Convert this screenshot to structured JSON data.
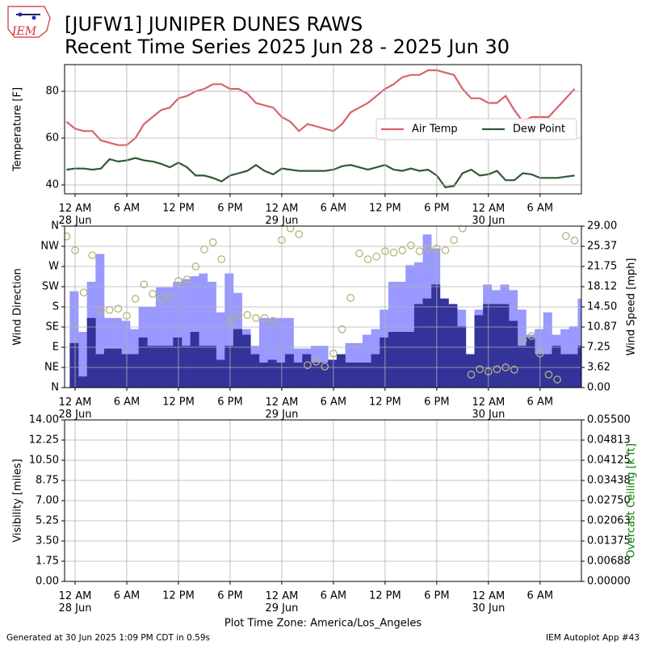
{
  "header": {
    "title": "[JUFW1] JUNIPER DUNES RAWS",
    "subtitle": "Recent Time Series 2025 Jun 28 - 2025 Jun 30",
    "logo_text": "IEM"
  },
  "footer": {
    "left": "Generated at 30 Jun 2025 1:09 PM CDT in 0.59s",
    "right": "IEM Autoplot App #43"
  },
  "chart_data": [
    {
      "type": "line",
      "ylabel": "Temperature [F]",
      "legend": "center right",
      "grid": true,
      "x": [
        -1,
        0,
        1,
        2,
        3,
        4,
        5,
        6,
        7,
        8,
        9,
        10,
        11,
        12,
        13,
        14,
        15,
        16,
        17,
        18,
        19,
        20,
        21,
        22,
        23,
        24,
        25,
        26,
        27,
        28,
        29,
        30,
        31,
        32,
        33,
        34,
        35,
        36,
        37,
        38,
        39,
        40,
        41,
        42,
        43,
        44,
        45,
        46,
        47,
        48,
        49,
        50,
        51,
        52,
        53,
        54,
        55,
        56,
        57,
        58
      ],
      "xlim": [
        -1.22,
        58.8
      ],
      "xticks": [
        {
          "value": 0,
          "label": "12 AM\n28 Jun"
        },
        {
          "value": 6,
          "label": "6 AM"
        },
        {
          "value": 12,
          "label": "12 PM"
        },
        {
          "value": 18,
          "label": "6 PM"
        },
        {
          "value": 24,
          "label": "12 AM\n29 Jun"
        },
        {
          "value": 30,
          "label": "6 AM"
        },
        {
          "value": 36,
          "label": "12 PM"
        },
        {
          "value": 42,
          "label": "6 PM"
        },
        {
          "value": 48,
          "label": "12 AM\n30 Jun"
        },
        {
          "value": 54,
          "label": "6 AM"
        }
      ],
      "ylim": [
        36.2,
        91.4
      ],
      "yticks": [
        40,
        60,
        80
      ],
      "series": [
        {
          "name": "Air Temp",
          "color": "#d9626a",
          "values": [
            67,
            64,
            63,
            63,
            59,
            58,
            57,
            57,
            60,
            66,
            69,
            72,
            73,
            77,
            78,
            80,
            81,
            83,
            83,
            81,
            81,
            79,
            75,
            74,
            73,
            69,
            67,
            63,
            66,
            65,
            64,
            63,
            66,
            71,
            73,
            75,
            78,
            81,
            83,
            86,
            87,
            87,
            89,
            89,
            88,
            87,
            81,
            77,
            77,
            75,
            75,
            78,
            72,
            67,
            69,
            69,
            69,
            73,
            77,
            81
          ]
        },
        {
          "name": "Dew Point",
          "color": "#2f5a34",
          "values": [
            46.5,
            47,
            47,
            46.5,
            47,
            51,
            50,
            50.5,
            51.5,
            50.5,
            50,
            49,
            47.5,
            49.5,
            47.5,
            44,
            44,
            43,
            41.5,
            44,
            45,
            46,
            48.5,
            46,
            44.5,
            47,
            46.5,
            46,
            46,
            46,
            46,
            46.5,
            48,
            48.5,
            47.5,
            46.5,
            47.5,
            48.5,
            46.5,
            46,
            47,
            46,
            46.5,
            44,
            39,
            39.5,
            45,
            46.5,
            44,
            44.5,
            46,
            42,
            42,
            45,
            44.5,
            43,
            43,
            43,
            43.5,
            44
          ]
        }
      ]
    },
    {
      "type": "bar",
      "ylabel": "Wind Direction",
      "y2label": "Wind Speed [mph]",
      "grid": true,
      "x": [
        -1,
        0,
        1,
        2,
        3,
        4,
        5,
        6,
        7,
        8,
        9,
        10,
        11,
        12,
        13,
        14,
        15,
        16,
        17,
        18,
        19,
        20,
        21,
        22,
        23,
        24,
        25,
        26,
        27,
        28,
        29,
        30,
        31,
        32,
        33,
        34,
        35,
        36,
        37,
        38,
        39,
        40,
        41,
        42,
        43,
        44,
        45,
        46,
        47,
        48,
        49,
        50,
        51,
        52,
        53,
        54,
        55,
        56,
        57,
        58
      ],
      "xlim": [
        -1.22,
        58.8
      ],
      "xticks": [
        {
          "value": 0,
          "label": "12 AM\n28 Jun"
        },
        {
          "value": 6,
          "label": "6 AM"
        },
        {
          "value": 12,
          "label": "12 PM"
        },
        {
          "value": 18,
          "label": "6 PM"
        },
        {
          "value": 24,
          "label": "12 AM\n29 Jun"
        },
        {
          "value": 30,
          "label": "6 AM"
        },
        {
          "value": 36,
          "label": "12 PM"
        },
        {
          "value": 42,
          "label": "6 PM"
        },
        {
          "value": 48,
          "label": "12 AM\n30 Jun"
        },
        {
          "value": 54,
          "label": "6 AM"
        }
      ],
      "ylim": [
        0,
        360
      ],
      "yticks": [
        {
          "value": 0,
          "label": "N"
        },
        {
          "value": 45,
          "label": "NE"
        },
        {
          "value": 90,
          "label": "E"
        },
        {
          "value": 135,
          "label": "SE"
        },
        {
          "value": 180,
          "label": "S"
        },
        {
          "value": 225,
          "label": "SW"
        },
        {
          "value": 270,
          "label": "W"
        },
        {
          "value": 315,
          "label": "NW"
        },
        {
          "value": 360,
          "label": "N"
        }
      ],
      "y2lim": [
        0,
        29
      ],
      "y2ticks": [
        {
          "value": 0,
          "label": "0.00"
        },
        {
          "value": 3.625,
          "label": "3.62"
        },
        {
          "value": 7.25,
          "label": "7.25"
        },
        {
          "value": 10.875,
          "label": "10.87"
        },
        {
          "value": 14.5,
          "label": "14.50"
        },
        {
          "value": 18.125,
          "label": "18.12"
        },
        {
          "value": 21.75,
          "label": "21.75"
        },
        {
          "value": 25.375,
          "label": "25.37"
        },
        {
          "value": 29,
          "label": "29.00"
        }
      ],
      "series": [
        {
          "type": "bar",
          "axis": "y2",
          "color": "#9999ff",
          "values": [
            17.3,
            10,
            19,
            24,
            12.5,
            12.5,
            12,
            10.5,
            14.5,
            14.5,
            18,
            18,
            19,
            19.5,
            20,
            20.5,
            19,
            13.5,
            20.5,
            17,
            10.5,
            7.5,
            12.5,
            12.5,
            12.5,
            12.5,
            7,
            7,
            7.5,
            7.5,
            5,
            2.5,
            8,
            8,
            9.5,
            10.5,
            14,
            19,
            19,
            22,
            22.5,
            27.5,
            25,
            14.5,
            14.5,
            14,
            6,
            14,
            18.5,
            17.5,
            18.5,
            17.5,
            14,
            9.5,
            10.5,
            13.5,
            9.5,
            10.5,
            11,
            16
          ]
        },
        {
          "type": "bar",
          "axis": "y2",
          "color": "#333399",
          "values": [
            8,
            2,
            12.5,
            6,
            7,
            7,
            6,
            6,
            9,
            7.5,
            7.5,
            7.5,
            9,
            7.5,
            10,
            7.5,
            7.5,
            5,
            7.5,
            10.5,
            9.5,
            6,
            4.5,
            5,
            4.5,
            6,
            4.5,
            6,
            4.5,
            4.5,
            5,
            6,
            4.5,
            4.5,
            4.5,
            6,
            9,
            10,
            10,
            10,
            15,
            16,
            18.5,
            16,
            15,
            11,
            6,
            13,
            15,
            15,
            15,
            12,
            7.5,
            9,
            6,
            6,
            7.5,
            6,
            6,
            7.5
          ]
        },
        {
          "type": "scatter",
          "color": "#b5b57a",
          "values": [
            337,
            306,
            212,
            295,
            173,
            173,
            176,
            160,
            198,
            230,
            209,
            200,
            202,
            238,
            241,
            270,
            308,
            324,
            286,
            148,
            160,
            162,
            155,
            155,
            149,
            329,
            355,
            342,
            50,
            58,
            47,
            76,
            130,
            200,
            299,
            286,
            292,
            304,
            301,
            306,
            317,
            304,
            310,
            310,
            306,
            329,
            355,
            29,
            41,
            36,
            41,
            45,
            40,
            106,
            115,
            76,
            29,
            18,
            338,
            328
          ]
        }
      ]
    },
    {
      "type": "line",
      "ylabel": "Visibility [miles]",
      "y2label": "Overcast Ceiling [k ft]",
      "y2label_color": "green",
      "xlabel": "Plot Time Zone: America/Los_Angeles",
      "grid": true,
      "xlim": [
        -1.22,
        58.8
      ],
      "xticks": [
        {
          "value": 0,
          "label": "12 AM\n28 Jun"
        },
        {
          "value": 6,
          "label": "6 AM"
        },
        {
          "value": 12,
          "label": "12 PM"
        },
        {
          "value": 18,
          "label": "6 PM"
        },
        {
          "value": 24,
          "label": "12 AM\n29 Jun"
        },
        {
          "value": 30,
          "label": "6 AM"
        },
        {
          "value": 36,
          "label": "12 PM"
        },
        {
          "value": 42,
          "label": "6 PM"
        },
        {
          "value": 48,
          "label": "12 AM\n30 Jun"
        },
        {
          "value": 54,
          "label": "6 AM"
        }
      ],
      "ylim": [
        0,
        14
      ],
      "yticks": [
        {
          "value": 0,
          "label": "0.00"
        },
        {
          "value": 1.75,
          "label": "1.75"
        },
        {
          "value": 3.5,
          "label": "3.50"
        },
        {
          "value": 5.25,
          "label": "5.25"
        },
        {
          "value": 7,
          "label": "7.00"
        },
        {
          "value": 8.75,
          "label": "8.75"
        },
        {
          "value": 10.5,
          "label": "10.50"
        },
        {
          "value": 12.25,
          "label": "12.25"
        },
        {
          "value": 14,
          "label": "14.00"
        }
      ],
      "y2lim": [
        0,
        0.055
      ],
      "y2ticks": [
        {
          "value": 0,
          "label": "0.00000"
        },
        {
          "value": 0.006875,
          "label": "0.00688"
        },
        {
          "value": 0.01375,
          "label": "0.01375"
        },
        {
          "value": 0.020625,
          "label": "0.02063"
        },
        {
          "value": 0.0275,
          "label": "0.02750"
        },
        {
          "value": 0.034375,
          "label": "0.03438"
        },
        {
          "value": 0.04125,
          "label": "0.04125"
        },
        {
          "value": 0.048125,
          "label": "0.04813"
        },
        {
          "value": 0.055,
          "label": "0.05500"
        }
      ],
      "series": []
    }
  ]
}
